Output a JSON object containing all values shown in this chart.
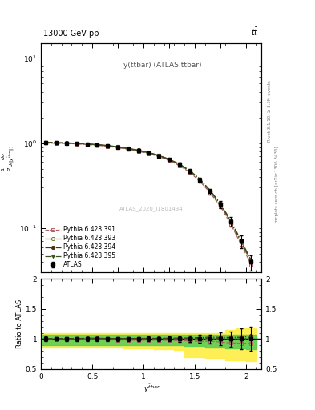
{
  "title_left": "13000 GeV pp",
  "title_right": "tt",
  "plot_title": "y(ttbar) (ATLAS ttbar)",
  "watermark": "ATLAS_2020_I1801434",
  "rivet_label": "Rivet 3.1.10, ≥ 3.3M events",
  "arxiv_label": "mcplots.cern.ch [arXiv:1306.3436]",
  "ylabel_ratio": "Ratio to ATLAS",
  "xlabel": "|y^{tbar}|",
  "xbins": [
    0.0,
    0.1,
    0.2,
    0.3,
    0.4,
    0.5,
    0.6,
    0.7,
    0.8,
    0.9,
    1.0,
    1.1,
    1.2,
    1.3,
    1.4,
    1.5,
    1.6,
    1.7,
    1.8,
    1.9,
    2.0,
    2.1
  ],
  "atlas_y": [
    1.02,
    1.01,
    1.0,
    0.99,
    0.97,
    0.95,
    0.93,
    0.9,
    0.86,
    0.82,
    0.77,
    0.71,
    0.64,
    0.56,
    0.47,
    0.37,
    0.27,
    0.19,
    0.12,
    0.07,
    0.04
  ],
  "atlas_yerr": [
    0.04,
    0.03,
    0.03,
    0.03,
    0.03,
    0.03,
    0.03,
    0.03,
    0.03,
    0.03,
    0.03,
    0.025,
    0.025,
    0.025,
    0.025,
    0.025,
    0.02,
    0.02,
    0.015,
    0.012,
    0.008
  ],
  "py391_y": [
    1.005,
    0.995,
    0.99,
    0.98,
    0.965,
    0.945,
    0.915,
    0.885,
    0.845,
    0.8,
    0.755,
    0.695,
    0.625,
    0.545,
    0.455,
    0.355,
    0.26,
    0.18,
    0.112,
    0.065,
    0.037
  ],
  "py393_y": [
    1.015,
    1.005,
    0.998,
    0.988,
    0.972,
    0.952,
    0.928,
    0.897,
    0.858,
    0.815,
    0.768,
    0.708,
    0.638,
    0.558,
    0.468,
    0.368,
    0.27,
    0.188,
    0.118,
    0.069,
    0.04
  ],
  "py394_y": [
    1.025,
    1.015,
    1.008,
    0.998,
    0.982,
    0.962,
    0.938,
    0.908,
    0.868,
    0.828,
    0.778,
    0.718,
    0.648,
    0.568,
    0.478,
    0.378,
    0.278,
    0.195,
    0.123,
    0.072,
    0.042
  ],
  "py395_y": [
    1.02,
    1.01,
    1.003,
    0.993,
    0.977,
    0.957,
    0.933,
    0.903,
    0.863,
    0.822,
    0.773,
    0.713,
    0.643,
    0.563,
    0.473,
    0.373,
    0.274,
    0.191,
    0.12,
    0.07,
    0.041
  ],
  "color_391": "#b06060",
  "color_393": "#707030",
  "color_394": "#503010",
  "color_395": "#405020",
  "color_atlas": "#000000",
  "band_yellow_x": [
    0.0,
    0.1,
    0.2,
    0.3,
    0.4,
    0.5,
    0.6,
    0.7,
    0.8,
    0.9,
    1.0,
    1.1,
    1.2,
    1.3,
    1.4,
    1.5,
    1.6,
    1.7,
    1.8,
    1.9,
    2.0,
    2.1
  ],
  "band_yellow_lo": [
    0.85,
    0.86,
    0.86,
    0.86,
    0.86,
    0.86,
    0.86,
    0.85,
    0.85,
    0.84,
    0.84,
    0.83,
    0.83,
    0.82,
    0.7,
    0.7,
    0.68,
    0.68,
    0.65,
    0.65,
    0.63,
    0.63
  ],
  "band_yellow_hi": [
    1.1,
    1.1,
    1.1,
    1.1,
    1.1,
    1.1,
    1.1,
    1.1,
    1.1,
    1.1,
    1.1,
    1.1,
    1.1,
    1.1,
    1.1,
    1.1,
    1.1,
    1.1,
    1.15,
    1.18,
    1.18,
    1.18
  ],
  "band_green_x": [
    0.0,
    0.1,
    0.2,
    0.3,
    0.4,
    0.5,
    0.6,
    0.7,
    0.8,
    0.9,
    1.0,
    1.1,
    1.2,
    1.3,
    1.4,
    1.5,
    1.6,
    1.7,
    1.8,
    1.9,
    2.0,
    2.1
  ],
  "band_green_lo": [
    0.9,
    0.9,
    0.9,
    0.9,
    0.9,
    0.9,
    0.9,
    0.9,
    0.9,
    0.9,
    0.9,
    0.9,
    0.9,
    0.9,
    0.88,
    0.88,
    0.86,
    0.86,
    0.84,
    0.84,
    0.83,
    0.83
  ],
  "band_green_hi": [
    1.07,
    1.07,
    1.07,
    1.07,
    1.07,
    1.07,
    1.07,
    1.07,
    1.07,
    1.07,
    1.07,
    1.07,
    1.07,
    1.07,
    1.07,
    1.07,
    1.07,
    1.07,
    1.07,
    1.07,
    1.07,
    1.07
  ],
  "ylim_main": [
    0.03,
    15.0
  ],
  "ylim_ratio": [
    0.5,
    2.0
  ],
  "xmax": 2.15
}
